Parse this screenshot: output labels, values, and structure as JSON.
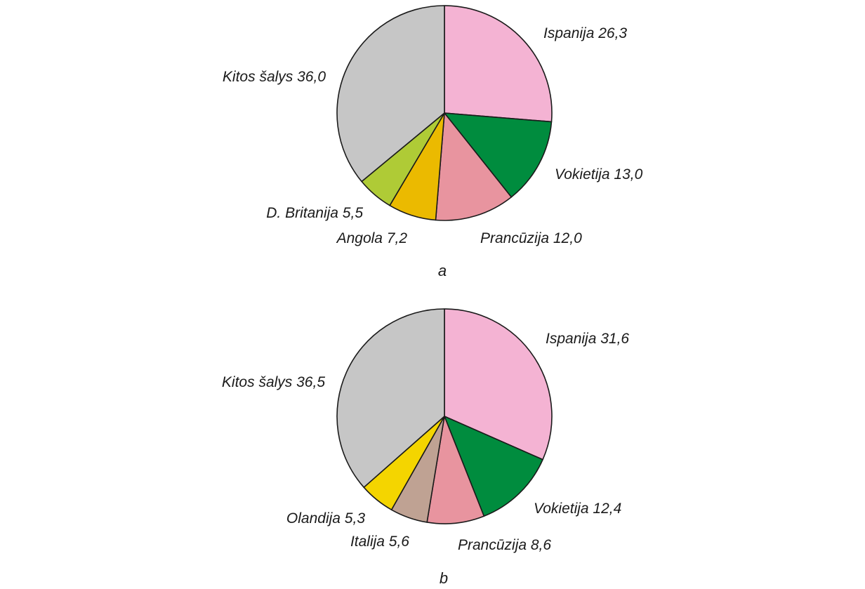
{
  "chart_data": [
    {
      "type": "pie",
      "caption": "a",
      "start_angle_deg": 0,
      "direction": "clockwise",
      "slices": [
        {
          "label": "Ispanija",
          "value": 26.3,
          "display": "26,3",
          "color": "#F4B3D3"
        },
        {
          "label": "Vokietija",
          "value": 13.0,
          "display": "13,0",
          "color": "#008C3E"
        },
        {
          "label": "Prancūzija",
          "value": 12.0,
          "display": "12,0",
          "color": "#E8949F"
        },
        {
          "label": "Angola",
          "value": 7.2,
          "display": "7,2",
          "color": "#EBBA00"
        },
        {
          "label": "D. Britanija",
          "value": 5.5,
          "display": "5,5",
          "color": "#AFCB36"
        },
        {
          "label": "Kitos šalys",
          "value": 36.0,
          "display": "36,0",
          "color": "#C6C6C6"
        }
      ]
    },
    {
      "type": "pie",
      "caption": "b",
      "start_angle_deg": 0,
      "direction": "clockwise",
      "slices": [
        {
          "label": "Ispanija",
          "value": 31.6,
          "display": "31,6",
          "color": "#F4B3D3"
        },
        {
          "label": "Vokietija",
          "value": 12.4,
          "display": "12,4",
          "color": "#008C3E"
        },
        {
          "label": "Prancūzija",
          "value": 8.6,
          "display": "8,6",
          "color": "#E8949F"
        },
        {
          "label": "Italija",
          "value": 5.6,
          "display": "5,6",
          "color": "#BFA293"
        },
        {
          "label": "Olandija",
          "value": 5.3,
          "display": "5,3",
          "color": "#F4D500"
        },
        {
          "label": "Kitos šalys",
          "value": 36.5,
          "display": "36,5",
          "color": "#C6C6C6"
        }
      ]
    }
  ]
}
